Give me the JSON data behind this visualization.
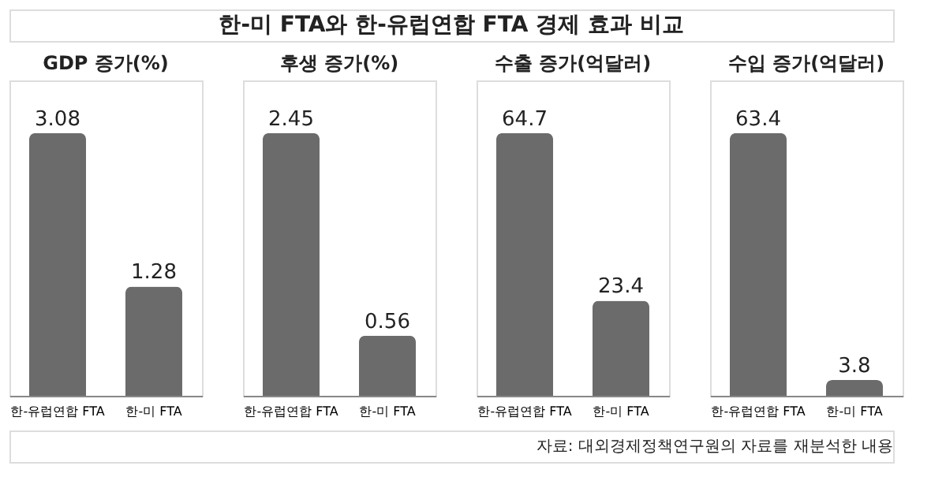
{
  "chart_data": [
    {
      "type": "other",
      "title": "한-미 FTA와 한-유럽연합 FTA 경제 효과 비교",
      "annotations": [
        "자료: 대외경제정책연구원의 자료를 재분석한 내용"
      ]
    },
    {
      "type": "bar",
      "title": "GDP 증가(%)",
      "categories": [
        "한-유럽연합 FTA",
        "한-미 FTA"
      ],
      "values": [
        3.08,
        1.28
      ],
      "color": "#6b6b6b",
      "data_labels": true
    },
    {
      "type": "bar",
      "title": "후생 증가(%)",
      "categories": [
        "한-유럽연합 FTA",
        "한-미 FTA"
      ],
      "values": [
        2.45,
        0.56
      ],
      "color": "#6b6b6b",
      "data_labels": true
    },
    {
      "type": "bar",
      "title": "수출 증가(억달러)",
      "categories": [
        "한-유럽연합 FTA",
        "한-미 FTA"
      ],
      "values": [
        64.7,
        23.4
      ],
      "color": "#6b6b6b",
      "data_labels": true
    },
    {
      "type": "bar",
      "title": "수입 증가(억달러)",
      "categories": [
        "한-유럽연합 FTA",
        "한-미 FTA"
      ],
      "values": [
        63.4,
        3.8
      ],
      "color": "#6b6b6b",
      "data_labels": true
    }
  ]
}
